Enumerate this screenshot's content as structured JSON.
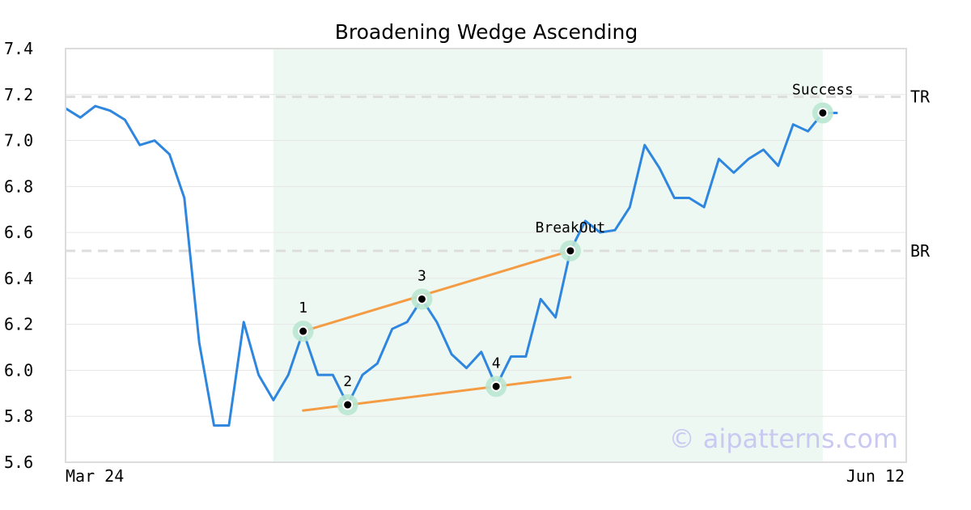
{
  "watermark": "© aipatterns.com",
  "chart_data": {
    "type": "line",
    "title": "Broadening Wedge Ascending",
    "xlabel": "",
    "ylabel": "",
    "ylim": [
      5.6,
      7.4
    ],
    "yticks": [
      5.6,
      5.8,
      6.0,
      6.2,
      6.4,
      6.6,
      6.8,
      7.0,
      7.2,
      7.4
    ],
    "xtick_labels": [
      "Mar 24",
      "Jun 12"
    ],
    "grid": true,
    "colors": {
      "line": "#2e86de",
      "trend": "#f39c44",
      "marker_halo": "#b9e6d2",
      "band": "#eef8f3",
      "level": "#dddddd"
    },
    "pattern_range": [
      14,
      51
    ],
    "series": [
      {
        "values": [
          7.14,
          7.1,
          7.15,
          7.13,
          7.09,
          6.98,
          7.0,
          6.94,
          6.75,
          6.12,
          5.76,
          5.76,
          6.21,
          5.98,
          5.87,
          5.98,
          6.17,
          5.98,
          5.98,
          5.85,
          5.98,
          6.03,
          6.18,
          6.21,
          6.31,
          6.21,
          6.07,
          6.01,
          6.08,
          5.93,
          6.06,
          6.06,
          6.31,
          6.23,
          6.52,
          6.65,
          6.6,
          6.61,
          6.71,
          6.98,
          6.88,
          6.75,
          6.75,
          6.71,
          6.92,
          6.86,
          6.92,
          6.96,
          6.89,
          7.07,
          7.04,
          7.12,
          7.12
        ]
      }
    ],
    "levels": [
      {
        "label": "TR",
        "value": 7.19
      },
      {
        "label": "BR",
        "value": 6.52
      }
    ],
    "points": [
      {
        "label": "1",
        "index": 16,
        "value": 6.17
      },
      {
        "label": "2",
        "index": 19,
        "value": 5.85
      },
      {
        "label": "3",
        "index": 24,
        "value": 6.31
      },
      {
        "label": "4",
        "index": 29,
        "value": 5.93
      },
      {
        "label": "BreakOut",
        "index": 34,
        "value": 6.52
      },
      {
        "label": "Success",
        "index": 51,
        "value": 7.12
      }
    ],
    "trendlines": [
      {
        "from": [
          16,
          6.17
        ],
        "to": [
          34,
          6.52
        ]
      },
      {
        "from": [
          16,
          5.825
        ],
        "to": [
          34,
          5.97
        ]
      }
    ]
  }
}
